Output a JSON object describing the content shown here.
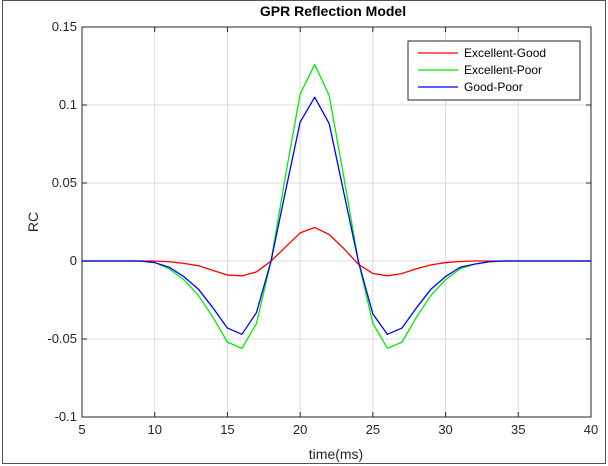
{
  "chart_data": {
    "type": "line",
    "title": "GPR Reflection Model",
    "xlabel": "time(ms)",
    "ylabel": "RC",
    "xlim": [
      5,
      40
    ],
    "ylim": [
      -0.1,
      0.15
    ],
    "xticks": [
      5,
      10,
      15,
      20,
      25,
      30,
      35,
      40
    ],
    "xtick_labels": [
      "5",
      "10",
      "15",
      "20",
      "25",
      "30",
      "35",
      "40"
    ],
    "yticks": [
      -0.1,
      -0.05,
      0,
      0.05,
      0.1,
      0.15
    ],
    "ytick_labels": [
      "-0.1",
      "-0.05",
      "0",
      "0.05",
      "0.1",
      "0.15"
    ],
    "grid": true,
    "legend_position": "top-right",
    "x": [
      5,
      6,
      7,
      8,
      9,
      10,
      11,
      12,
      13,
      14,
      15,
      16,
      17,
      18,
      19,
      20,
      21,
      22,
      23,
      24,
      25,
      26,
      27,
      28,
      29,
      30,
      31,
      32,
      33,
      34,
      35,
      36,
      37,
      38,
      39,
      40
    ],
    "series": [
      {
        "name": "Excellent-Good",
        "color": "#ff0000",
        "values": [
          0,
          0,
          0,
          0,
          0,
          0,
          -0.0005,
          -0.0015,
          -0.003,
          -0.006,
          -0.009,
          -0.0095,
          -0.007,
          0,
          0.009,
          0.018,
          0.0215,
          0.017,
          0.008,
          -0.002,
          -0.008,
          -0.0095,
          -0.008,
          -0.005,
          -0.0025,
          -0.001,
          -0.0003,
          0,
          0,
          0,
          0,
          0,
          0,
          0,
          0,
          0
        ]
      },
      {
        "name": "Excellent-Poor",
        "color": "#00ee00",
        "values": [
          0,
          0,
          0,
          0,
          0,
          -0.001,
          -0.005,
          -0.012,
          -0.022,
          -0.036,
          -0.052,
          -0.056,
          -0.04,
          0,
          0.055,
          0.107,
          0.126,
          0.106,
          0.054,
          0,
          -0.04,
          -0.056,
          -0.052,
          -0.036,
          -0.022,
          -0.012,
          -0.005,
          -0.002,
          -0.0005,
          0,
          0,
          0,
          0,
          0,
          0,
          0
        ]
      },
      {
        "name": "Good-Poor",
        "color": "#0000ff",
        "values": [
          0,
          0,
          0,
          0,
          0,
          -0.001,
          -0.004,
          -0.01,
          -0.018,
          -0.03,
          -0.043,
          -0.047,
          -0.033,
          0,
          0.045,
          0.089,
          0.105,
          0.088,
          0.044,
          0,
          -0.034,
          -0.047,
          -0.043,
          -0.03,
          -0.018,
          -0.01,
          -0.004,
          -0.002,
          -0.0005,
          0,
          0,
          0,
          0,
          0,
          0,
          0
        ]
      }
    ]
  }
}
